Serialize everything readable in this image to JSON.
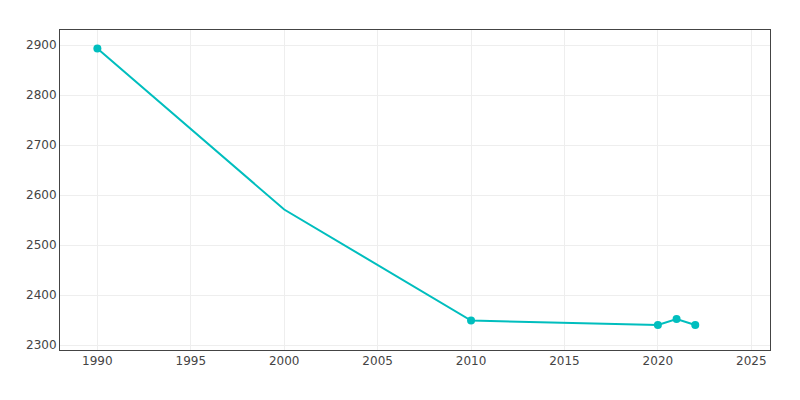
{
  "chart_data": {
    "type": "line",
    "x": [
      1990,
      2000,
      2010,
      2020,
      2021,
      2022
    ],
    "series": [
      {
        "type": "line",
        "color": "#00BEBE",
        "values": [
          2893,
          2571,
          2349,
          2340,
          2352,
          2340
        ]
      },
      {
        "type": "scatter",
        "marker": "circle",
        "color": "#00BEBE",
        "values": [
          2893,
          null,
          2349,
          2340,
          2352,
          2340
        ]
      }
    ],
    "xlim": [
      1988,
      2026
    ],
    "ylim": [
      2290,
      2930
    ],
    "xticks": [
      1990,
      1995,
      2000,
      2005,
      2010,
      2015,
      2020,
      2025
    ],
    "yticks": [
      2300,
      2400,
      2500,
      2600,
      2700,
      2800,
      2900
    ],
    "grid": true
  }
}
